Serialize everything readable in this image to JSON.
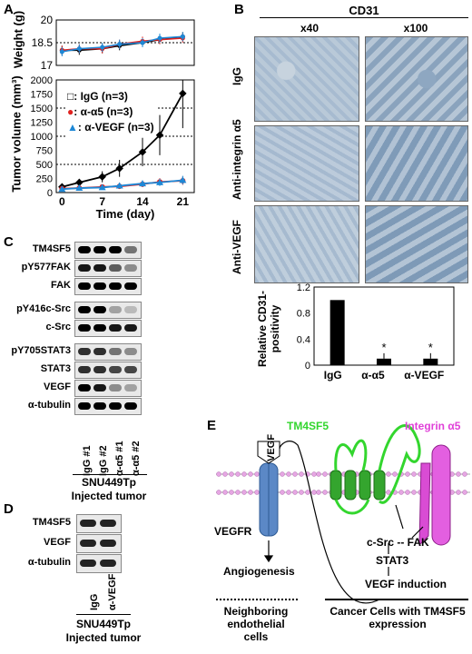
{
  "panels": {
    "A": "A",
    "B": "B",
    "C": "C",
    "D": "D",
    "E": "E"
  },
  "panelA": {
    "weight_chart": {
      "type": "line",
      "ylabel": "Weight (g)",
      "ylim": [
        17,
        20
      ],
      "yticks": [
        "17",
        "18.5",
        "20"
      ],
      "series": [
        {
          "name": "IgG",
          "color": "#000000",
          "x": [
            0,
            3,
            7,
            10,
            14,
            17,
            21
          ],
          "values": [
            18.0,
            18.0,
            18.1,
            18.3,
            18.5,
            18.7,
            18.9
          ]
        },
        {
          "name": "α-α5",
          "color": "#e0221f",
          "x": [
            0,
            3,
            7,
            10,
            14,
            17,
            21
          ],
          "values": [
            18.0,
            18.1,
            18.1,
            18.4,
            18.6,
            18.7,
            18.8
          ]
        },
        {
          "name": "α-VEGF",
          "color": "#1e88d6",
          "x": [
            0,
            3,
            7,
            10,
            14,
            17,
            21
          ],
          "values": [
            17.9,
            18.1,
            18.2,
            18.4,
            18.5,
            18.8,
            18.9
          ]
        }
      ]
    },
    "volume_chart": {
      "type": "line",
      "xlabel": "Time (day)",
      "ylabel": "Tumor volume (mm³)",
      "xticks": [
        "0",
        "7",
        "14",
        "21"
      ],
      "yticks": [
        "0",
        "250",
        "500",
        "750",
        "1000",
        "1250",
        "1500",
        "1750",
        "2000"
      ],
      "ylim": [
        0,
        2000
      ],
      "legend": [
        "□: IgG (n=3)",
        "●: α-α5 (n=3)",
        "▲: α-VEGF (n=3)"
      ],
      "series": [
        {
          "name": "IgG",
          "color": "#000000",
          "x": [
            0,
            3,
            7,
            10,
            14,
            17,
            21
          ],
          "values": [
            100,
            180,
            280,
            430,
            720,
            1020,
            1760
          ]
        },
        {
          "name": "α-α5",
          "color": "#e0221f",
          "x": [
            0,
            3,
            7,
            10,
            14,
            17,
            21
          ],
          "values": [
            70,
            80,
            100,
            110,
            150,
            190,
            210
          ]
        },
        {
          "name": "α-VEGF",
          "color": "#1e88d6",
          "x": [
            0,
            3,
            7,
            10,
            14,
            17,
            21
          ],
          "values": [
            60,
            80,
            90,
            120,
            160,
            180,
            220
          ]
        }
      ]
    }
  },
  "panelB": {
    "title": "CD31",
    "col_labels": [
      "x40",
      "x100"
    ],
    "row_labels": [
      "IgG",
      "Anti-integrin α5",
      "Anti-VEGF"
    ],
    "chart_data": {
      "type": "bar",
      "categories": [
        "IgG",
        "α-α5",
        "α-VEGF"
      ],
      "values": [
        1.0,
        0.1,
        0.1
      ],
      "ylabel": "Relative CD31-positivity",
      "yticks": [
        "0",
        "0.4",
        "0.8",
        "1.2"
      ],
      "ylim": [
        0,
        1.2
      ],
      "annotations": [
        "*",
        "*"
      ]
    }
  },
  "panelC": {
    "rows": [
      "TM4SF5",
      "pY577FAK",
      "FAK",
      "pY416c-Src",
      "c-Src",
      "pY705STAT3",
      "STAT3",
      "VEGF",
      "α-tubulin"
    ],
    "lanes": [
      "IgG #1",
      "IgG #2",
      "α-α5 #1",
      "α-α5 #2"
    ],
    "caption1": "SNU449Tp",
    "caption2": "Injected tumor"
  },
  "panelD": {
    "rows": [
      "TM4SF5",
      "VEGF",
      "α-tubulin"
    ],
    "lanes": [
      "IgG",
      "α-VEGF"
    ],
    "caption1": "SNU449Tp",
    "caption2": "Injected tumor"
  },
  "panelE": {
    "tm4sf5": "TM4SF5",
    "integrin": "Integrin α5",
    "vegf": "VEGF",
    "vegfr": "VEGFR",
    "csrc_fak": "c-Src -- FAK",
    "stat3": "STAT3",
    "vegf_induction": "VEGF induction",
    "angiogenesis": "Angiogenesis",
    "neighbor": "Neighboring endothelial cells",
    "cancer": "Cancer Cells with TM4SF5 expression"
  }
}
